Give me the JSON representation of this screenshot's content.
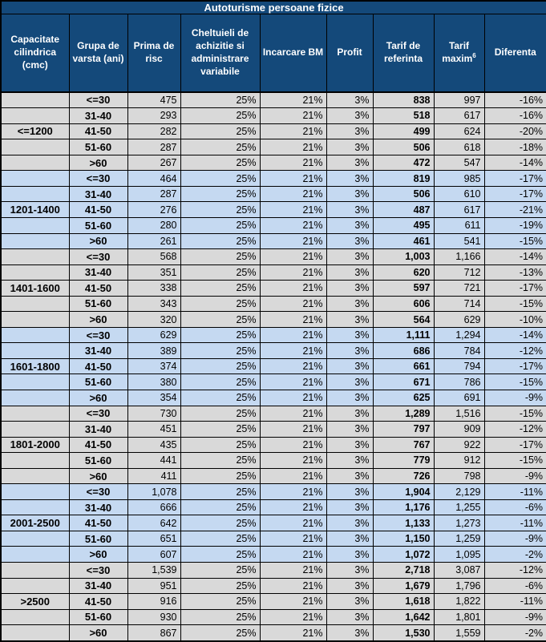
{
  "colors": {
    "header_bg": "#14497A",
    "header_text": "#FFFFFF",
    "row_gray": "#D9D9D9",
    "row_blue": "#C5D9F1",
    "border": "#000000",
    "body_text": "#000000"
  },
  "chart_data": {
    "type": "table",
    "title": "Autoturisme persoane fizice",
    "columns": [
      {
        "id": "capacity",
        "label": "Capacitate cilindrica (cmc)"
      },
      {
        "id": "age",
        "label": "Grupa de varsta (ani)"
      },
      {
        "id": "prima_de_risc",
        "label": "Prima de risc"
      },
      {
        "id": "cheltuieli",
        "label": "Cheltuieli de achizitie si administrare variabile"
      },
      {
        "id": "incarcare_bm",
        "label": "Incarcare BM"
      },
      {
        "id": "profit",
        "label": "Profit"
      },
      {
        "id": "tarif_referinta",
        "label": "Tarif de referinta"
      },
      {
        "id": "tarif_maxim",
        "label": "Tarif maxim",
        "superscript": "6"
      },
      {
        "id": "diferenta",
        "label": "Diferenta"
      }
    ],
    "groups": [
      {
        "capacity": "<=1200",
        "shade": "gray",
        "rows": [
          {
            "age": "<=30",
            "prima_de_risc": "475",
            "cheltuieli": "25%",
            "incarcare_bm": "21%",
            "profit": "3%",
            "tarif_referinta": "838",
            "tarif_maxim": "997",
            "diferenta": "-16%"
          },
          {
            "age": "31-40",
            "prima_de_risc": "293",
            "cheltuieli": "25%",
            "incarcare_bm": "21%",
            "profit": "3%",
            "tarif_referinta": "518",
            "tarif_maxim": "617",
            "diferenta": "-16%"
          },
          {
            "age": "41-50",
            "prima_de_risc": "282",
            "cheltuieli": "25%",
            "incarcare_bm": "21%",
            "profit": "3%",
            "tarif_referinta": "499",
            "tarif_maxim": "624",
            "diferenta": "-20%"
          },
          {
            "age": "51-60",
            "prima_de_risc": "287",
            "cheltuieli": "25%",
            "incarcare_bm": "21%",
            "profit": "3%",
            "tarif_referinta": "506",
            "tarif_maxim": "618",
            "diferenta": "-18%"
          },
          {
            "age": ">60",
            "prima_de_risc": "267",
            "cheltuieli": "25%",
            "incarcare_bm": "21%",
            "profit": "3%",
            "tarif_referinta": "472",
            "tarif_maxim": "547",
            "diferenta": "-14%"
          }
        ]
      },
      {
        "capacity": "1201-1400",
        "shade": "blue",
        "rows": [
          {
            "age": "<=30",
            "prima_de_risc": "464",
            "cheltuieli": "25%",
            "incarcare_bm": "21%",
            "profit": "3%",
            "tarif_referinta": "819",
            "tarif_maxim": "985",
            "diferenta": "-17%"
          },
          {
            "age": "31-40",
            "prima_de_risc": "287",
            "cheltuieli": "25%",
            "incarcare_bm": "21%",
            "profit": "3%",
            "tarif_referinta": "506",
            "tarif_maxim": "610",
            "diferenta": "-17%"
          },
          {
            "age": "41-50",
            "prima_de_risc": "276",
            "cheltuieli": "25%",
            "incarcare_bm": "21%",
            "profit": "3%",
            "tarif_referinta": "487",
            "tarif_maxim": "617",
            "diferenta": "-21%"
          },
          {
            "age": "51-60",
            "prima_de_risc": "280",
            "cheltuieli": "25%",
            "incarcare_bm": "21%",
            "profit": "3%",
            "tarif_referinta": "495",
            "tarif_maxim": "611",
            "diferenta": "-19%"
          },
          {
            "age": ">60",
            "prima_de_risc": "261",
            "cheltuieli": "25%",
            "incarcare_bm": "21%",
            "profit": "3%",
            "tarif_referinta": "461",
            "tarif_maxim": "541",
            "diferenta": "-15%"
          }
        ]
      },
      {
        "capacity": "1401-1600",
        "shade": "gray",
        "rows": [
          {
            "age": "<=30",
            "prima_de_risc": "568",
            "cheltuieli": "25%",
            "incarcare_bm": "21%",
            "profit": "3%",
            "tarif_referinta": "1,003",
            "tarif_maxim": "1,166",
            "diferenta": "-14%"
          },
          {
            "age": "31-40",
            "prima_de_risc": "351",
            "cheltuieli": "25%",
            "incarcare_bm": "21%",
            "profit": "3%",
            "tarif_referinta": "620",
            "tarif_maxim": "712",
            "diferenta": "-13%"
          },
          {
            "age": "41-50",
            "prima_de_risc": "338",
            "cheltuieli": "25%",
            "incarcare_bm": "21%",
            "profit": "3%",
            "tarif_referinta": "597",
            "tarif_maxim": "721",
            "diferenta": "-17%"
          },
          {
            "age": "51-60",
            "prima_de_risc": "343",
            "cheltuieli": "25%",
            "incarcare_bm": "21%",
            "profit": "3%",
            "tarif_referinta": "606",
            "tarif_maxim": "714",
            "diferenta": "-15%"
          },
          {
            "age": ">60",
            "prima_de_risc": "320",
            "cheltuieli": "25%",
            "incarcare_bm": "21%",
            "profit": "3%",
            "tarif_referinta": "564",
            "tarif_maxim": "629",
            "diferenta": "-10%"
          }
        ]
      },
      {
        "capacity": "1601-1800",
        "shade": "blue",
        "rows": [
          {
            "age": "<=30",
            "prima_de_risc": "629",
            "cheltuieli": "25%",
            "incarcare_bm": "21%",
            "profit": "3%",
            "tarif_referinta": "1,111",
            "tarif_maxim": "1,294",
            "diferenta": "-14%"
          },
          {
            "age": "31-40",
            "prima_de_risc": "389",
            "cheltuieli": "25%",
            "incarcare_bm": "21%",
            "profit": "3%",
            "tarif_referinta": "686",
            "tarif_maxim": "784",
            "diferenta": "-12%"
          },
          {
            "age": "41-50",
            "prima_de_risc": "374",
            "cheltuieli": "25%",
            "incarcare_bm": "21%",
            "profit": "3%",
            "tarif_referinta": "661",
            "tarif_maxim": "794",
            "diferenta": "-17%"
          },
          {
            "age": "51-60",
            "prima_de_risc": "380",
            "cheltuieli": "25%",
            "incarcare_bm": "21%",
            "profit": "3%",
            "tarif_referinta": "671",
            "tarif_maxim": "786",
            "diferenta": "-15%"
          },
          {
            "age": ">60",
            "prima_de_risc": "354",
            "cheltuieli": "25%",
            "incarcare_bm": "21%",
            "profit": "3%",
            "tarif_referinta": "625",
            "tarif_maxim": "691",
            "diferenta": "-9%"
          }
        ]
      },
      {
        "capacity": "1801-2000",
        "shade": "gray",
        "rows": [
          {
            "age": "<=30",
            "prima_de_risc": "730",
            "cheltuieli": "25%",
            "incarcare_bm": "21%",
            "profit": "3%",
            "tarif_referinta": "1,289",
            "tarif_maxim": "1,516",
            "diferenta": "-15%"
          },
          {
            "age": "31-40",
            "prima_de_risc": "451",
            "cheltuieli": "25%",
            "incarcare_bm": "21%",
            "profit": "3%",
            "tarif_referinta": "797",
            "tarif_maxim": "909",
            "diferenta": "-12%"
          },
          {
            "age": "41-50",
            "prima_de_risc": "435",
            "cheltuieli": "25%",
            "incarcare_bm": "21%",
            "profit": "3%",
            "tarif_referinta": "767",
            "tarif_maxim": "922",
            "diferenta": "-17%"
          },
          {
            "age": "51-60",
            "prima_de_risc": "441",
            "cheltuieli": "25%",
            "incarcare_bm": "21%",
            "profit": "3%",
            "tarif_referinta": "779",
            "tarif_maxim": "912",
            "diferenta": "-15%"
          },
          {
            "age": ">60",
            "prima_de_risc": "411",
            "cheltuieli": "25%",
            "incarcare_bm": "21%",
            "profit": "3%",
            "tarif_referinta": "726",
            "tarif_maxim": "798",
            "diferenta": "-9%"
          }
        ]
      },
      {
        "capacity": "2001-2500",
        "shade": "blue",
        "rows": [
          {
            "age": "<=30",
            "prima_de_risc": "1,078",
            "cheltuieli": "25%",
            "incarcare_bm": "21%",
            "profit": "3%",
            "tarif_referinta": "1,904",
            "tarif_maxim": "2,129",
            "diferenta": "-11%"
          },
          {
            "age": "31-40",
            "prima_de_risc": "666",
            "cheltuieli": "25%",
            "incarcare_bm": "21%",
            "profit": "3%",
            "tarif_referinta": "1,176",
            "tarif_maxim": "1,255",
            "diferenta": "-6%"
          },
          {
            "age": "41-50",
            "prima_de_risc": "642",
            "cheltuieli": "25%",
            "incarcare_bm": "21%",
            "profit": "3%",
            "tarif_referinta": "1,133",
            "tarif_maxim": "1,273",
            "diferenta": "-11%"
          },
          {
            "age": "51-60",
            "prima_de_risc": "651",
            "cheltuieli": "25%",
            "incarcare_bm": "21%",
            "profit": "3%",
            "tarif_referinta": "1,150",
            "tarif_maxim": "1,259",
            "diferenta": "-9%"
          },
          {
            "age": ">60",
            "prima_de_risc": "607",
            "cheltuieli": "25%",
            "incarcare_bm": "21%",
            "profit": "3%",
            "tarif_referinta": "1,072",
            "tarif_maxim": "1,095",
            "diferenta": "-2%"
          }
        ]
      },
      {
        "capacity": ">2500",
        "shade": "gray",
        "rows": [
          {
            "age": "<=30",
            "prima_de_risc": "1,539",
            "cheltuieli": "25%",
            "incarcare_bm": "21%",
            "profit": "3%",
            "tarif_referinta": "2,718",
            "tarif_maxim": "3,087",
            "diferenta": "-12%"
          },
          {
            "age": "31-40",
            "prima_de_risc": "951",
            "cheltuieli": "25%",
            "incarcare_bm": "21%",
            "profit": "3%",
            "tarif_referinta": "1,679",
            "tarif_maxim": "1,796",
            "diferenta": "-6%"
          },
          {
            "age": "41-50",
            "prima_de_risc": "916",
            "cheltuieli": "25%",
            "incarcare_bm": "21%",
            "profit": "3%",
            "tarif_referinta": "1,618",
            "tarif_maxim": "1,822",
            "diferenta": "-11%"
          },
          {
            "age": "51-60",
            "prima_de_risc": "930",
            "cheltuieli": "25%",
            "incarcare_bm": "21%",
            "profit": "3%",
            "tarif_referinta": "1,642",
            "tarif_maxim": "1,801",
            "diferenta": "-9%"
          },
          {
            "age": ">60",
            "prima_de_risc": "867",
            "cheltuieli": "25%",
            "incarcare_bm": "21%",
            "profit": "3%",
            "tarif_referinta": "1,530",
            "tarif_maxim": "1,559",
            "diferenta": "-2%"
          }
        ]
      }
    ]
  }
}
